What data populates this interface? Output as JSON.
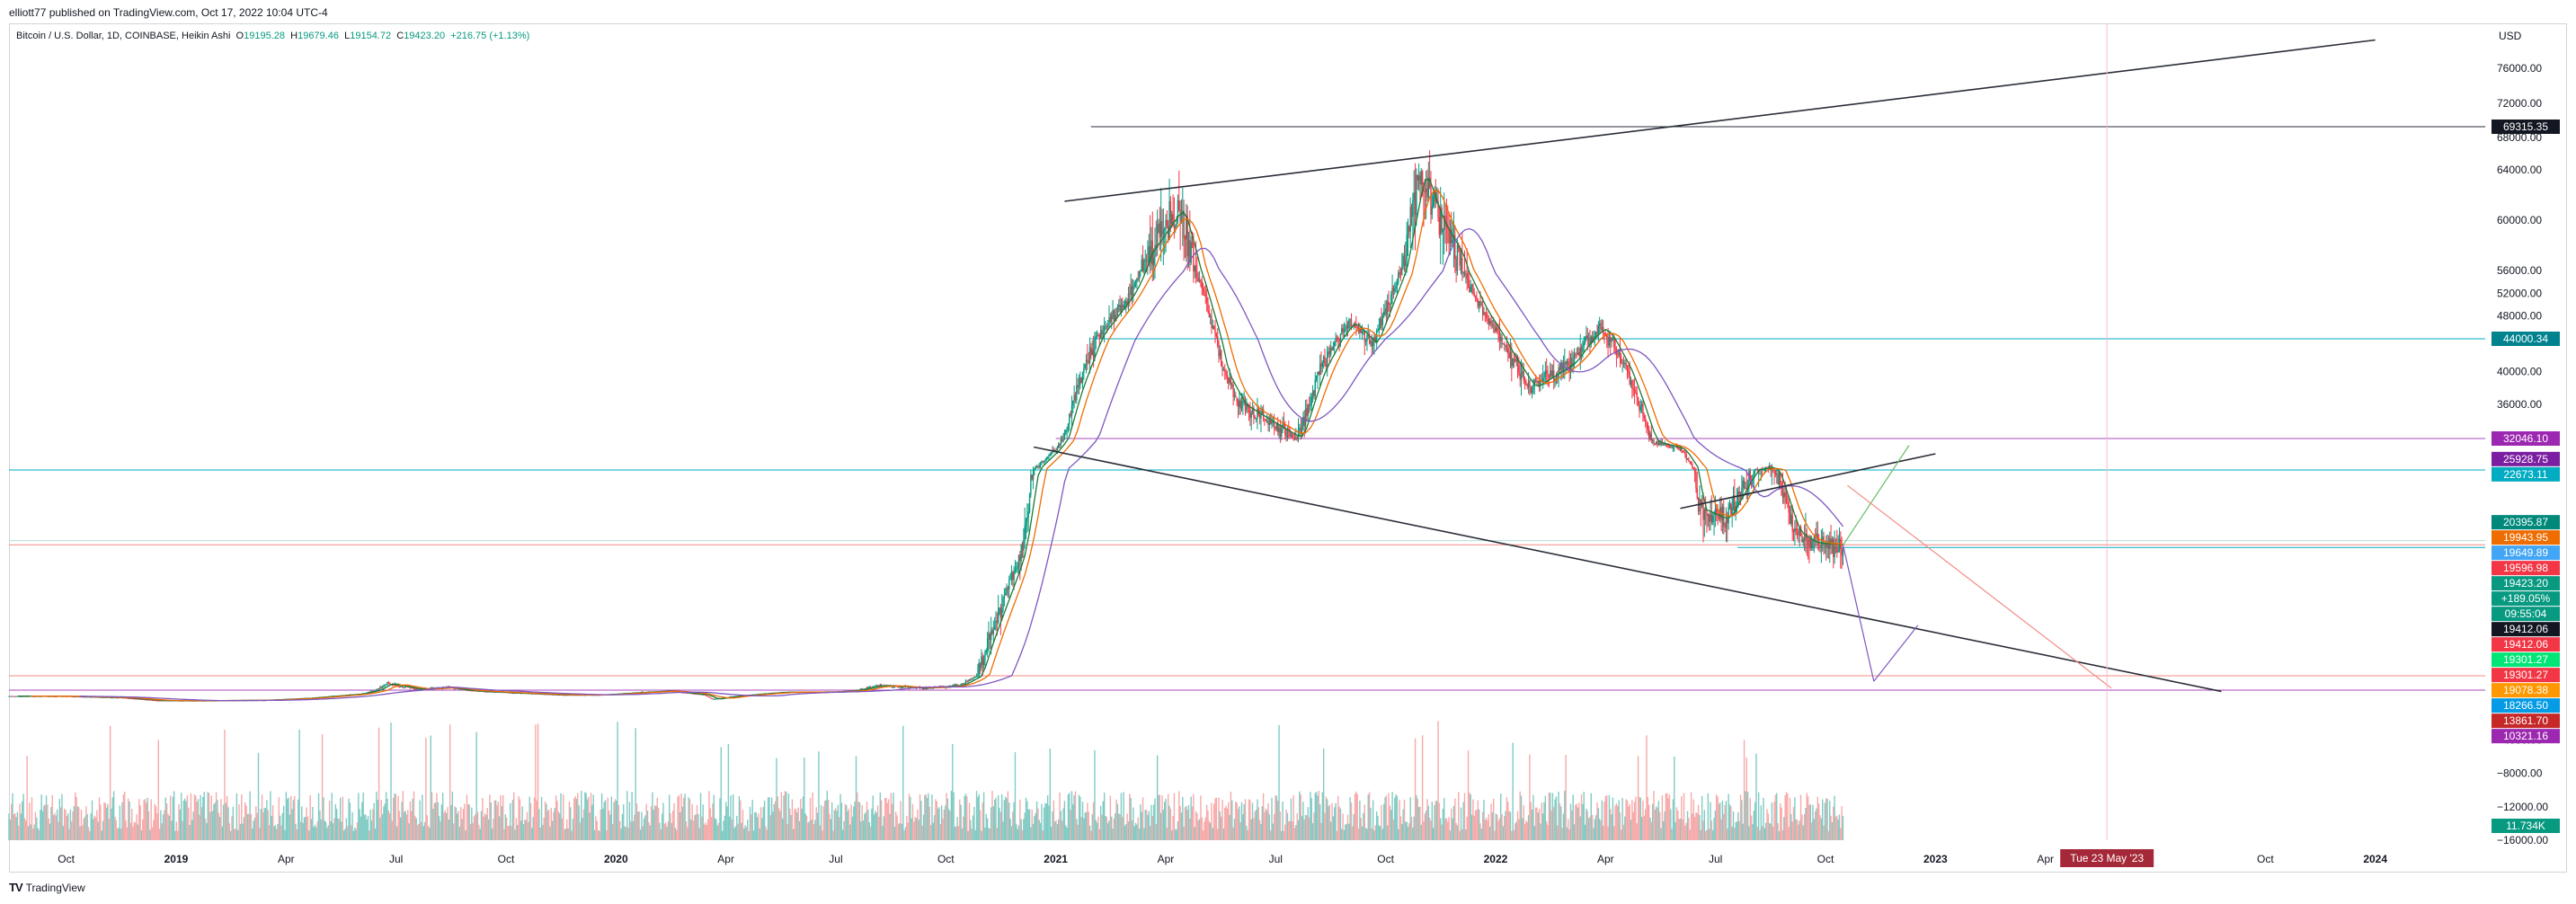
{
  "header": {
    "published": "elliott77 published on TradingView.com, Oct 17, 2022 10:04 UTC-4"
  },
  "legend": {
    "symbol": "Bitcoin / U.S. Dollar, 1D, COINBASE, Heikin Ashi",
    "open_label": "O",
    "open": "19195.28",
    "high_label": "H",
    "high": "19679.46",
    "low_label": "L",
    "low": "19154.72",
    "close_label": "C",
    "close": "19423.20",
    "change": "+216.75 (+1.13%)"
  },
  "footer": {
    "logo": "TV",
    "brand": "TradingView"
  },
  "colors": {
    "up": "#089981",
    "down": "#f23645",
    "ma_fast": "#1b7a34",
    "ma_mid": "#ef6c00",
    "ma_slow": "#7e57c2",
    "trend": "#2a2e39",
    "purple_line": "#ce93d8",
    "teal_line": "#00acc1"
  },
  "chart_data": {
    "type": "candlestick",
    "title": "Bitcoin / U.S. Dollar, 1D, COINBASE, Heikin Ashi",
    "currency": "USD",
    "ylim": [
      -16000,
      80000
    ],
    "volume_ylim": [
      -16000,
      0
    ],
    "y_ticks": [
      "76000.00",
      "72000.00",
      "68000.00",
      "64000.00",
      "60000.00",
      "56000.00",
      "52000.00",
      "48000.00",
      "44000.00",
      "40000.00",
      "36000.00",
      "0.00",
      "−4000.00",
      "−8000.00",
      "−12000.00",
      "−16000.00"
    ],
    "x_ticks": [
      {
        "label": "Oct",
        "t": 2018.75
      },
      {
        "label": "2019",
        "t": 2019.0
      },
      {
        "label": "Apr",
        "t": 2019.25
      },
      {
        "label": "Jul",
        "t": 2019.5
      },
      {
        "label": "Oct",
        "t": 2019.75
      },
      {
        "label": "2020",
        "t": 2020.0
      },
      {
        "label": "Apr",
        "t": 2020.25
      },
      {
        "label": "Jul",
        "t": 2020.5
      },
      {
        "label": "Oct",
        "t": 2020.75
      },
      {
        "label": "2021",
        "t": 2021.0
      },
      {
        "label": "Apr",
        "t": 2021.25
      },
      {
        "label": "Jul",
        "t": 2021.5
      },
      {
        "label": "Oct",
        "t": 2021.75
      },
      {
        "label": "2022",
        "t": 2022.0
      },
      {
        "label": "Apr",
        "t": 2022.25
      },
      {
        "label": "Jul",
        "t": 2022.5
      },
      {
        "label": "Oct",
        "t": 2022.75
      },
      {
        "label": "2023",
        "t": 2023.0
      },
      {
        "label": "Apr",
        "t": 2023.25
      },
      {
        "label": "Oct",
        "t": 2023.75
      },
      {
        "label": "2024",
        "t": 2024.0
      }
    ],
    "cursor_date": {
      "label": "Tue 23 May '23",
      "t": 2023.39
    },
    "price_path": [
      [
        2018.62,
        6500
      ],
      [
        2018.75,
        6400
      ],
      [
        2018.88,
        5500
      ],
      [
        2018.96,
        3700
      ],
      [
        2019.05,
        3600
      ],
      [
        2019.2,
        3900
      ],
      [
        2019.3,
        5200
      ],
      [
        2019.42,
        8000
      ],
      [
        2019.48,
        12000
      ],
      [
        2019.55,
        10500
      ],
      [
        2019.62,
        11000
      ],
      [
        2019.7,
        9500
      ],
      [
        2019.8,
        8200
      ],
      [
        2019.88,
        7300
      ],
      [
        2019.96,
        7200
      ],
      [
        2020.05,
        8800
      ],
      [
        2020.12,
        9800
      ],
      [
        2020.2,
        7500
      ],
      [
        2020.22,
        4500
      ],
      [
        2020.28,
        6800
      ],
      [
        2020.38,
        9000
      ],
      [
        2020.5,
        9200
      ],
      [
        2020.6,
        11500
      ],
      [
        2020.7,
        10800
      ],
      [
        2020.78,
        11500
      ],
      [
        2020.85,
        15500
      ],
      [
        2020.92,
        19000
      ],
      [
        2021.0,
        29000
      ],
      [
        2021.05,
        38000
      ],
      [
        2021.1,
        45000
      ],
      [
        2021.17,
        52000
      ],
      [
        2021.2,
        57000
      ],
      [
        2021.28,
        61000
      ],
      [
        2021.32,
        56000
      ],
      [
        2021.38,
        40000
      ],
      [
        2021.42,
        36000
      ],
      [
        2021.5,
        33500
      ],
      [
        2021.55,
        32000
      ],
      [
        2021.6,
        40000
      ],
      [
        2021.67,
        47000
      ],
      [
        2021.72,
        43000
      ],
      [
        2021.78,
        55000
      ],
      [
        2021.83,
        64000
      ],
      [
        2021.87,
        60000
      ],
      [
        2021.92,
        57000
      ],
      [
        2021.97,
        49000
      ],
      [
        2022.02,
        43000
      ],
      [
        2022.08,
        38000
      ],
      [
        2022.17,
        41000
      ],
      [
        2022.24,
        46000
      ],
      [
        2022.3,
        40000
      ],
      [
        2022.36,
        31000
      ],
      [
        2022.42,
        29000
      ],
      [
        2022.46,
        21000
      ],
      [
        2022.52,
        20500
      ],
      [
        2022.58,
        22500
      ],
      [
        2022.62,
        23500
      ],
      [
        2022.68,
        20000
      ],
      [
        2022.72,
        19500
      ],
      [
        2022.79,
        19400
      ]
    ],
    "moving_averages": [
      {
        "name": "MA fast",
        "color": "#1b7a34"
      },
      {
        "name": "MA mid",
        "color": "#ef6c00"
      },
      {
        "name": "MA slow",
        "color": "#7e57c2"
      }
    ],
    "horizontal_levels": [
      {
        "price": 69315.35,
        "color": "#2a2e39"
      },
      {
        "price": 44000.34,
        "color": "#00acc1"
      },
      {
        "price": 32046.1,
        "color": "#ab47bc"
      },
      {
        "price": 22673.11,
        "color": "#00acc1"
      },
      {
        "price": 19412.06,
        "color": "#f28b82"
      },
      {
        "price": 13861.7,
        "color": "#f28b82"
      },
      {
        "price": 10321.16,
        "color": "#ab47bc"
      }
    ],
    "trendlines": [
      {
        "from": [
          2021.02,
          61500
        ],
        "to": [
          2024.0,
          79500
        ],
        "color": "#2a2e39"
      },
      {
        "from": [
          2020.95,
          29500
        ],
        "to": [
          2023.65,
          9500
        ],
        "color": "#2a2e39"
      },
      {
        "from": [
          2022.42,
          21000
        ],
        "to": [
          2023.0,
          27500
        ],
        "color": "#2a2e39"
      }
    ],
    "projections": [
      {
        "from": [
          2022.79,
          19400
        ],
        "to": [
          2022.86,
          12500
        ],
        "color": "#7e57c2"
      },
      {
        "from": [
          2022.86,
          12500
        ],
        "to": [
          2022.96,
          16000
        ],
        "color": "#7e57c2"
      },
      {
        "from": [
          2022.79,
          19400
        ],
        "to": [
          2022.94,
          30000
        ],
        "color": "#66bb6a"
      },
      {
        "from": [
          2022.8,
          22000
        ],
        "to": [
          2023.4,
          10800
        ],
        "color": "#f28b82"
      }
    ],
    "price_badges": [
      {
        "label": "69315.35",
        "price": 69315.35,
        "color": "#131722"
      },
      {
        "label": "44000.34",
        "price": 44000.34,
        "color": "#00838f"
      },
      {
        "label": "32046.10",
        "price": 32046.1,
        "color": "#9c27b0"
      },
      {
        "label": "25928.75",
        "price": 25928.75,
        "color": "#7b1fa2"
      },
      {
        "label": "22673.11",
        "price": 22673.11,
        "color": "#00acc1"
      },
      {
        "label": "20395.87",
        "price": 20395.87,
        "color": "#00897b"
      },
      {
        "label": "19943.95",
        "price": 19943.95,
        "color": "#ef6c00"
      },
      {
        "label": "19649.89",
        "price": 19649.89,
        "color": "#42a5f5"
      },
      {
        "label": "19596.98",
        "price": 19596.98,
        "color": "#f23645"
      },
      {
        "label": "19423.20",
        "price": 19423.2,
        "color": "#089981"
      },
      {
        "label": "+189.05%",
        "price": 19423.2,
        "color": "#089981"
      },
      {
        "label": "09:55:04",
        "price": 19423.2,
        "color": "#089981"
      },
      {
        "label": "19412.06",
        "price": 19412.06,
        "color": "#131722"
      },
      {
        "label": "19412.06",
        "price": 19412.06,
        "color": "#f23645"
      },
      {
        "label": "19301.27",
        "price": 19301.27,
        "color": "#00e676"
      },
      {
        "label": "19301.27",
        "price": 19301.27,
        "color": "#f23645"
      },
      {
        "label": "19078.38",
        "price": 19078.38,
        "color": "#ff9800"
      },
      {
        "label": "18266.50",
        "price": 18266.5,
        "color": "#039be5"
      },
      {
        "label": "13861.70",
        "price": 13861.7,
        "color": "#c62828"
      },
      {
        "label": "10321.16",
        "price": 10321.16,
        "color": "#9c27b0"
      }
    ],
    "volume_badge": {
      "label": "11.734K",
      "color": "#089981"
    }
  }
}
